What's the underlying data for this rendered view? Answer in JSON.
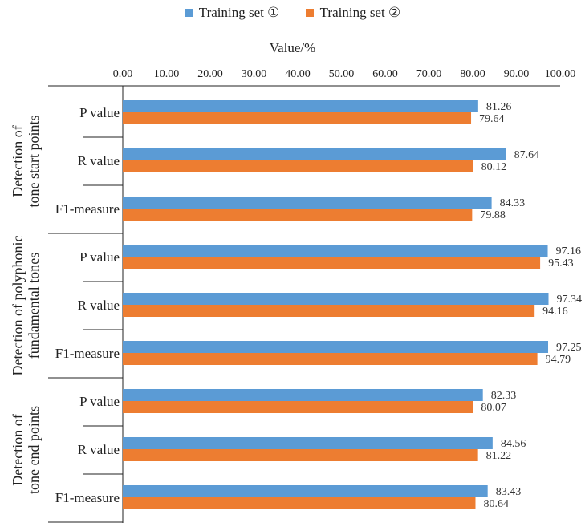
{
  "chart_data": {
    "type": "bar",
    "orientation": "horizontal",
    "xlabel": "Value/%",
    "xlim": [
      0,
      100
    ],
    "xticks": [
      "0.00",
      "10.00",
      "20.00",
      "30.00",
      "40.00",
      "50.00",
      "60.00",
      "70.00",
      "80.00",
      "90.00",
      "100.00"
    ],
    "legend_placement": "top",
    "groups": [
      {
        "label": "Detection of tone start points",
        "categories": [
          "P value",
          "R value",
          "F1-measure"
        ]
      },
      {
        "label": "Detection of polyphonic fundamental tones",
        "categories": [
          "P value",
          "R value",
          "F1-measure"
        ]
      },
      {
        "label": "Detection of tone end points",
        "categories": [
          "P value",
          "R value",
          "F1-measure"
        ]
      }
    ],
    "series": [
      {
        "name": "Training set ①",
        "color": "#5b9bd5",
        "values": [
          81.26,
          87.64,
          84.33,
          97.16,
          97.34,
          97.25,
          82.33,
          84.56,
          83.43
        ],
        "labels": [
          "81.26",
          "87.64",
          "84.33",
          "97.16",
          "97.34",
          "97.25",
          "82.33",
          "84.56",
          "83.43"
        ]
      },
      {
        "name": "Training set ②",
        "color": "#ed7d31",
        "values": [
          79.64,
          80.12,
          79.88,
          95.43,
          94.16,
          94.79,
          80.07,
          81.22,
          80.64
        ],
        "labels": [
          "79.64",
          "80.12",
          "79.88",
          "95.43",
          "94.16",
          "94.79",
          "80.07",
          "81.22",
          "80.64"
        ]
      }
    ]
  }
}
